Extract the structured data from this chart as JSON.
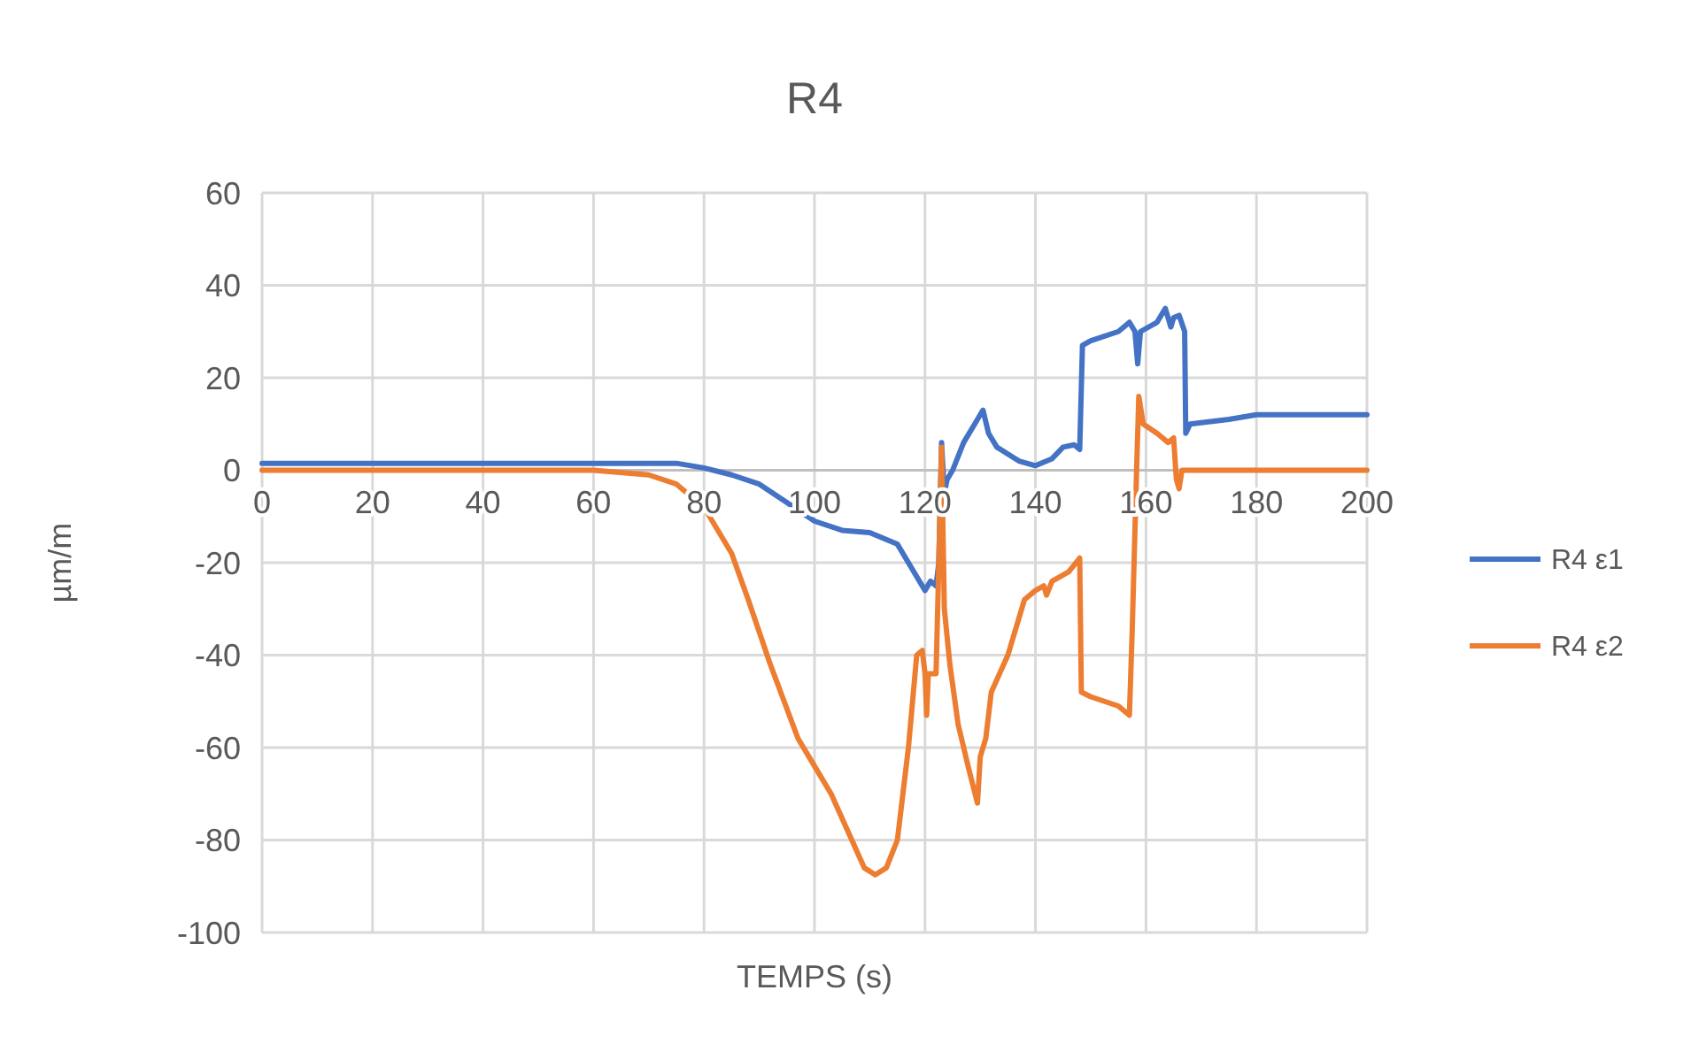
{
  "chart_data": {
    "type": "line",
    "title": "R4",
    "xlabel": "TEMPS (s)",
    "ylabel": "µm/m",
    "xlim": [
      0,
      200
    ],
    "xticks": [
      0,
      20,
      40,
      60,
      80,
      100,
      120,
      140,
      160,
      180,
      200
    ],
    "ylim": [
      -100,
      60
    ],
    "yticks": [
      -100,
      -80,
      -60,
      -40,
      -20,
      0,
      20,
      40,
      60
    ],
    "grid": true,
    "legend": "right",
    "marker": "none",
    "line_style": "solid",
    "series": [
      {
        "name": "R4 ε1",
        "color": "#4472c4",
        "x": [
          0,
          60,
          75,
          80,
          85,
          90,
          95,
          100,
          105,
          110,
          115,
          118,
          120,
          121,
          122,
          122.5,
          123,
          123.5,
          124,
          125,
          127,
          129,
          130.5,
          131.5,
          133,
          137,
          140,
          143,
          145,
          147,
          148,
          148.5,
          150,
          155,
          157,
          158,
          158.5,
          159,
          162,
          163.5,
          164.5,
          165,
          166,
          167,
          167.2,
          168,
          175,
          180,
          190,
          200
        ],
        "values": [
          1.5,
          1.5,
          1.5,
          0.5,
          -1,
          -3,
          -7,
          -11,
          -13,
          -13.5,
          -16,
          -22,
          -26,
          -24,
          -25,
          -20,
          6,
          -5,
          -2,
          0,
          6,
          10,
          13,
          8,
          5,
          2,
          1,
          2.5,
          5,
          5.5,
          4.5,
          27,
          28,
          30,
          32,
          30,
          23,
          30,
          32,
          35,
          31,
          33,
          33.5,
          30,
          8,
          10,
          11,
          12,
          12,
          12
        ]
      },
      {
        "name": "R4 ε2",
        "color": "#ed7d31",
        "x": [
          0,
          60,
          70,
          75,
          80,
          85,
          88,
          92,
          97,
          100,
          103,
          106,
          109,
          111,
          113,
          115,
          117,
          118.5,
          119.5,
          120,
          120.3,
          120.6,
          122,
          122.5,
          123,
          123.5,
          124.5,
          126,
          128,
          129.5,
          130,
          131,
          132,
          135,
          138,
          140,
          141.5,
          142,
          143,
          146,
          148,
          148.3,
          150,
          155,
          157,
          157.5,
          158.3,
          158.7,
          159.5,
          162,
          164,
          165,
          165.5,
          166,
          166.5,
          170,
          200
        ],
        "values": [
          0,
          0,
          -1,
          -3,
          -8,
          -18,
          -28,
          -42,
          -58,
          -64,
          -70,
          -78,
          -86,
          -87.5,
          -86,
          -80,
          -60,
          -40,
          -39,
          -44,
          -53,
          -44,
          -44,
          -20,
          5,
          -30,
          -42,
          -55,
          -65,
          -72,
          -62,
          -58,
          -48,
          -40,
          -28,
          -26,
          -25,
          -27,
          -24,
          -22,
          -19,
          -48,
          -49,
          -51,
          -53,
          -35,
          0,
          16,
          10,
          8,
          6,
          7,
          -2,
          -4,
          0,
          0,
          0
        ]
      }
    ]
  }
}
